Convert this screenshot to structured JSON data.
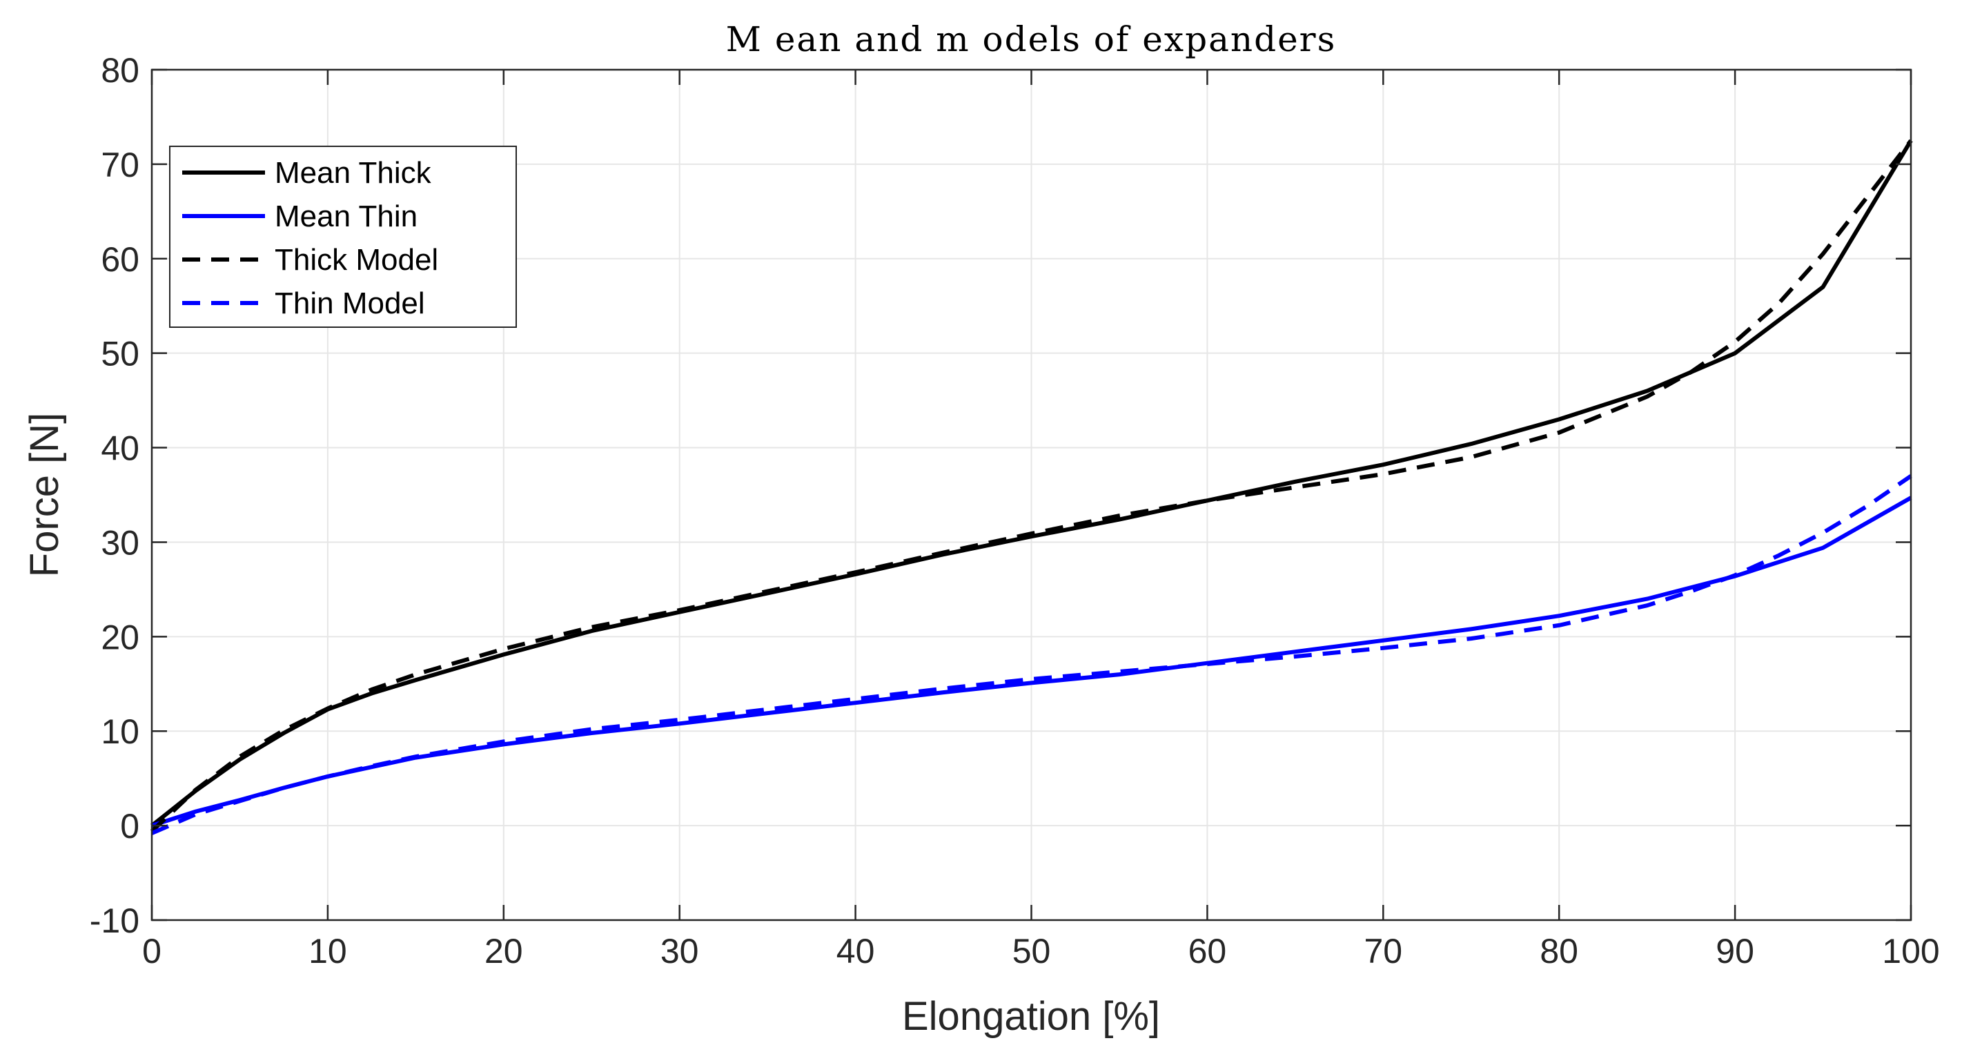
{
  "chart_data": {
    "type": "line",
    "title": "M ean and m odels of expanders",
    "xlabel": "Elongation [%]",
    "ylabel": "Force [N]",
    "xlim": [
      0,
      100
    ],
    "ylim": [
      -10,
      80
    ],
    "xticks": [
      0,
      10,
      20,
      30,
      40,
      50,
      60,
      70,
      80,
      90,
      100
    ],
    "yticks": [
      -10,
      0,
      10,
      20,
      30,
      40,
      50,
      60,
      70,
      80
    ],
    "grid": true,
    "legend_position": "top-left",
    "series": [
      {
        "name": "Mean Thick",
        "color": "#000000",
        "style": "solid",
        "x": [
          0,
          2.5,
          5,
          7.5,
          10,
          12.5,
          15,
          20,
          25,
          30,
          35,
          40,
          45,
          50,
          55,
          60,
          65,
          70,
          75,
          80,
          85,
          90,
          95,
          100
        ],
        "y": [
          0,
          3.7,
          7,
          9.8,
          12.3,
          14,
          15.4,
          18.1,
          20.6,
          22.6,
          24.6,
          26.6,
          28.7,
          30.6,
          32.4,
          34.4,
          36.4,
          38.2,
          40.4,
          43,
          46,
          50,
          57,
          72.5
        ]
      },
      {
        "name": "Mean Thin",
        "color": "#0000ff",
        "style": "solid",
        "x": [
          0,
          2.5,
          5,
          7.5,
          10,
          12.5,
          15,
          20,
          25,
          30,
          35,
          40,
          45,
          50,
          55,
          60,
          65,
          70,
          75,
          80,
          85,
          90,
          95,
          100
        ],
        "y": [
          0,
          1.5,
          2.7,
          4,
          5.2,
          6.2,
          7.2,
          8.6,
          9.8,
          10.8,
          11.9,
          13,
          14.1,
          15.1,
          16,
          17.2,
          18.4,
          19.6,
          20.8,
          22.2,
          24,
          26.4,
          29.4,
          34.7
        ]
      },
      {
        "name": "Thick Model",
        "color": "#000000",
        "style": "dashed",
        "x": [
          0,
          2.5,
          5,
          7.5,
          10,
          12.5,
          15,
          20,
          25,
          30,
          35,
          40,
          45,
          50,
          55,
          60,
          65,
          70,
          75,
          80,
          85,
          87.5,
          90,
          92.5,
          95,
          97.5,
          100
        ],
        "y": [
          -0.6,
          3.8,
          7.3,
          10.1,
          12.4,
          14.4,
          16,
          18.7,
          21,
          22.8,
          24.8,
          26.8,
          28.9,
          30.9,
          32.8,
          34.4,
          35.8,
          37.2,
          39,
          41.6,
          45.4,
          48,
          51.2,
          55.3,
          60.5,
          66.5,
          72.5
        ]
      },
      {
        "name": "Thin Model",
        "color": "#0000ff",
        "style": "dashed",
        "x": [
          0,
          2.5,
          5,
          7.5,
          10,
          12.5,
          15,
          20,
          25,
          30,
          35,
          40,
          45,
          50,
          55,
          60,
          65,
          70,
          75,
          80,
          85,
          87.5,
          90,
          92.5,
          95,
          97.5,
          100
        ],
        "y": [
          -0.8,
          1.2,
          2.6,
          4,
          5.2,
          6.3,
          7.3,
          8.9,
          10.2,
          11.2,
          12.3,
          13.4,
          14.5,
          15.5,
          16.3,
          17.1,
          17.9,
          18.8,
          19.8,
          21.2,
          23.3,
          24.8,
          26.5,
          28.6,
          31,
          33.8,
          37
        ]
      }
    ]
  }
}
